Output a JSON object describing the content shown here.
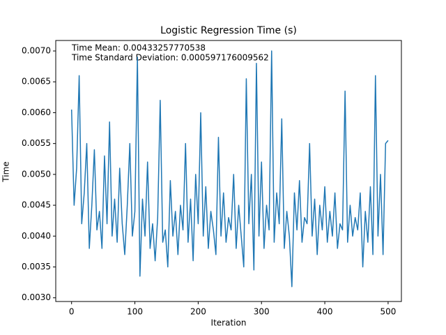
{
  "chart_data": {
    "type": "line",
    "title": "Logistic Regression Time (s)",
    "xlabel": "Iteration",
    "ylabel": "Time",
    "annotations": [
      "Time Mean: 0.00433257770538",
      "Time Standard Deviation: 0.000597176009562"
    ],
    "xlim": [
      -25,
      521
    ],
    "ylim": [
      0.00294,
      0.00717
    ],
    "xticks": [
      0,
      100,
      200,
      300,
      400,
      500
    ],
    "yticks": [
      {
        "value": 0.003,
        "label": "0.0030"
      },
      {
        "value": 0.0035,
        "label": "0.0035"
      },
      {
        "value": 0.004,
        "label": "0.0040"
      },
      {
        "value": 0.0045,
        "label": "0.0045"
      },
      {
        "value": 0.005,
        "label": "0.0050"
      },
      {
        "value": 0.0055,
        "label": "0.0055"
      },
      {
        "value": 0.006,
        "label": "0.0060"
      },
      {
        "value": 0.0065,
        "label": "0.0065"
      },
      {
        "value": 0.007,
        "label": "0.0070"
      }
    ],
    "x": [
      0,
      4,
      8,
      12,
      16,
      20,
      24,
      28,
      32,
      36,
      40,
      44,
      48,
      52,
      56,
      60,
      64,
      68,
      72,
      76,
      80,
      84,
      88,
      92,
      96,
      100,
      104,
      108,
      112,
      116,
      120,
      124,
      128,
      132,
      136,
      140,
      144,
      148,
      152,
      156,
      160,
      164,
      168,
      172,
      176,
      180,
      184,
      188,
      192,
      196,
      200,
      204,
      208,
      212,
      216,
      220,
      224,
      228,
      232,
      236,
      240,
      244,
      248,
      252,
      256,
      260,
      264,
      268,
      272,
      276,
      280,
      284,
      288,
      292,
      296,
      300,
      304,
      308,
      312,
      316,
      320,
      324,
      328,
      332,
      336,
      340,
      344,
      348,
      352,
      356,
      360,
      364,
      368,
      372,
      376,
      380,
      384,
      388,
      392,
      396,
      400,
      404,
      408,
      412,
      416,
      420,
      424,
      428,
      432,
      436,
      440,
      444,
      448,
      452,
      456,
      460,
      464,
      468,
      472,
      476,
      480,
      484,
      488,
      492,
      496,
      500
    ],
    "series": [
      {
        "color": "#1f77b4",
        "values": [
          0.00605,
          0.0045,
          0.0051,
          0.0066,
          0.0042,
          0.0047,
          0.0055,
          0.0038,
          0.0045,
          0.0054,
          0.0041,
          0.0044,
          0.0038,
          0.0053,
          0.0042,
          0.00585,
          0.004,
          0.0046,
          0.0039,
          0.0051,
          0.0042,
          0.0037,
          0.0045,
          0.0055,
          0.004,
          0.0044,
          0.0069,
          0.00335,
          0.0046,
          0.004,
          0.0052,
          0.0038,
          0.0042,
          0.0036,
          0.0043,
          0.0062,
          0.0039,
          0.0041,
          0.0035,
          0.0049,
          0.004,
          0.0044,
          0.0037,
          0.0045,
          0.0041,
          0.0055,
          0.0039,
          0.0046,
          0.0036,
          0.005,
          0.0042,
          0.006,
          0.004,
          0.0048,
          0.0038,
          0.0044,
          0.0041,
          0.0037,
          0.0056,
          0.004,
          0.0047,
          0.0039,
          0.0043,
          0.0041,
          0.005,
          0.0038,
          0.0045,
          0.004,
          0.0035,
          0.00655,
          0.0042,
          0.005,
          0.00345,
          0.0068,
          0.004,
          0.0052,
          0.0038,
          0.0045,
          0.0041,
          0.007,
          0.0039,
          0.0047,
          0.0042,
          0.0059,
          0.0038,
          0.0044,
          0.004,
          0.00318,
          0.0047,
          0.0041,
          0.0049,
          0.0039,
          0.0043,
          0.0042,
          0.0055,
          0.004,
          0.0046,
          0.0037,
          0.0045,
          0.0041,
          0.0048,
          0.0039,
          0.0044,
          0.004,
          0.0047,
          0.0038,
          0.0042,
          0.0041,
          0.00635,
          0.0039,
          0.0045,
          0.004,
          0.0043,
          0.0041,
          0.0047,
          0.0035,
          0.0044,
          0.0039,
          0.0048,
          0.0037,
          0.0066,
          0.004,
          0.005,
          0.0037,
          0.0055,
          0.00555
        ]
      }
    ]
  }
}
